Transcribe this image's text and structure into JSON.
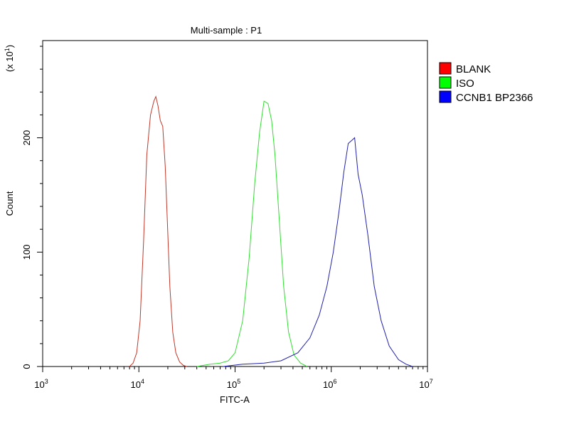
{
  "chart_data": {
    "type": "line",
    "title": "Multi-sample : P1",
    "xlabel": "FITC-A",
    "ylabel": "Count",
    "y_multiplier_base": "(x 10",
    "y_multiplier_exp": "1",
    "y_multiplier_close": ")",
    "x_scale": "log",
    "xlim": [
      1000,
      10000000
    ],
    "ylim": [
      0,
      285
    ],
    "x_ticks": [
      {
        "value": 1000,
        "base": "10",
        "exp": "3"
      },
      {
        "value": 10000,
        "base": "10",
        "exp": "4"
      },
      {
        "value": 100000,
        "base": "10",
        "exp": "5"
      },
      {
        "value": 1000000,
        "base": "10",
        "exp": "6"
      },
      {
        "value": 10000000,
        "base": "10",
        "exp": "7"
      }
    ],
    "y_ticks": [
      {
        "value": 0,
        "label": "0"
      },
      {
        "value": 100,
        "label": "100"
      },
      {
        "value": 200,
        "label": "200"
      }
    ],
    "grid": false,
    "legend_position": "right",
    "series": [
      {
        "name": "BLANK",
        "color": "#ff0000",
        "stroke": "#c0392b",
        "x": [
          8000,
          8700,
          9500,
          10300,
          11200,
          12100,
          13200,
          14300,
          15000,
          15800,
          16700,
          17700,
          18800,
          19800,
          21000,
          22500,
          24200,
          26500,
          29000,
          31500
        ],
        "y": [
          0,
          3,
          12,
          40,
          110,
          185,
          220,
          232,
          236,
          228,
          215,
          210,
          175,
          125,
          70,
          30,
          12,
          4,
          1,
          0
        ]
      },
      {
        "name": "ISO",
        "color": "#00ff00",
        "stroke": "#33dd33",
        "x": [
          40000,
          55000,
          70000,
          85000,
          100000,
          120000,
          140000,
          160000,
          180000,
          200000,
          220000,
          240000,
          260000,
          290000,
          320000,
          360000,
          410000,
          480000,
          560000
        ],
        "y": [
          0,
          2,
          3,
          5,
          12,
          40,
          95,
          160,
          205,
          232,
          230,
          215,
          185,
          125,
          70,
          30,
          10,
          3,
          0
        ]
      },
      {
        "name": "CCNB1 BP2366",
        "color": "#0000ff",
        "stroke": "#2222aa",
        "x": [
          75000,
          120000,
          200000,
          300000,
          450000,
          600000,
          750000,
          900000,
          1050000,
          1200000,
          1350000,
          1500000,
          1650000,
          1750000,
          1900000,
          2100000,
          2400000,
          2800000,
          3300000,
          4000000,
          5000000,
          6000000,
          7000000
        ],
        "y": [
          0,
          2,
          3,
          5,
          12,
          25,
          45,
          70,
          100,
          135,
          170,
          195,
          198,
          200,
          168,
          150,
          115,
          70,
          40,
          18,
          6,
          2,
          0
        ]
      }
    ]
  }
}
